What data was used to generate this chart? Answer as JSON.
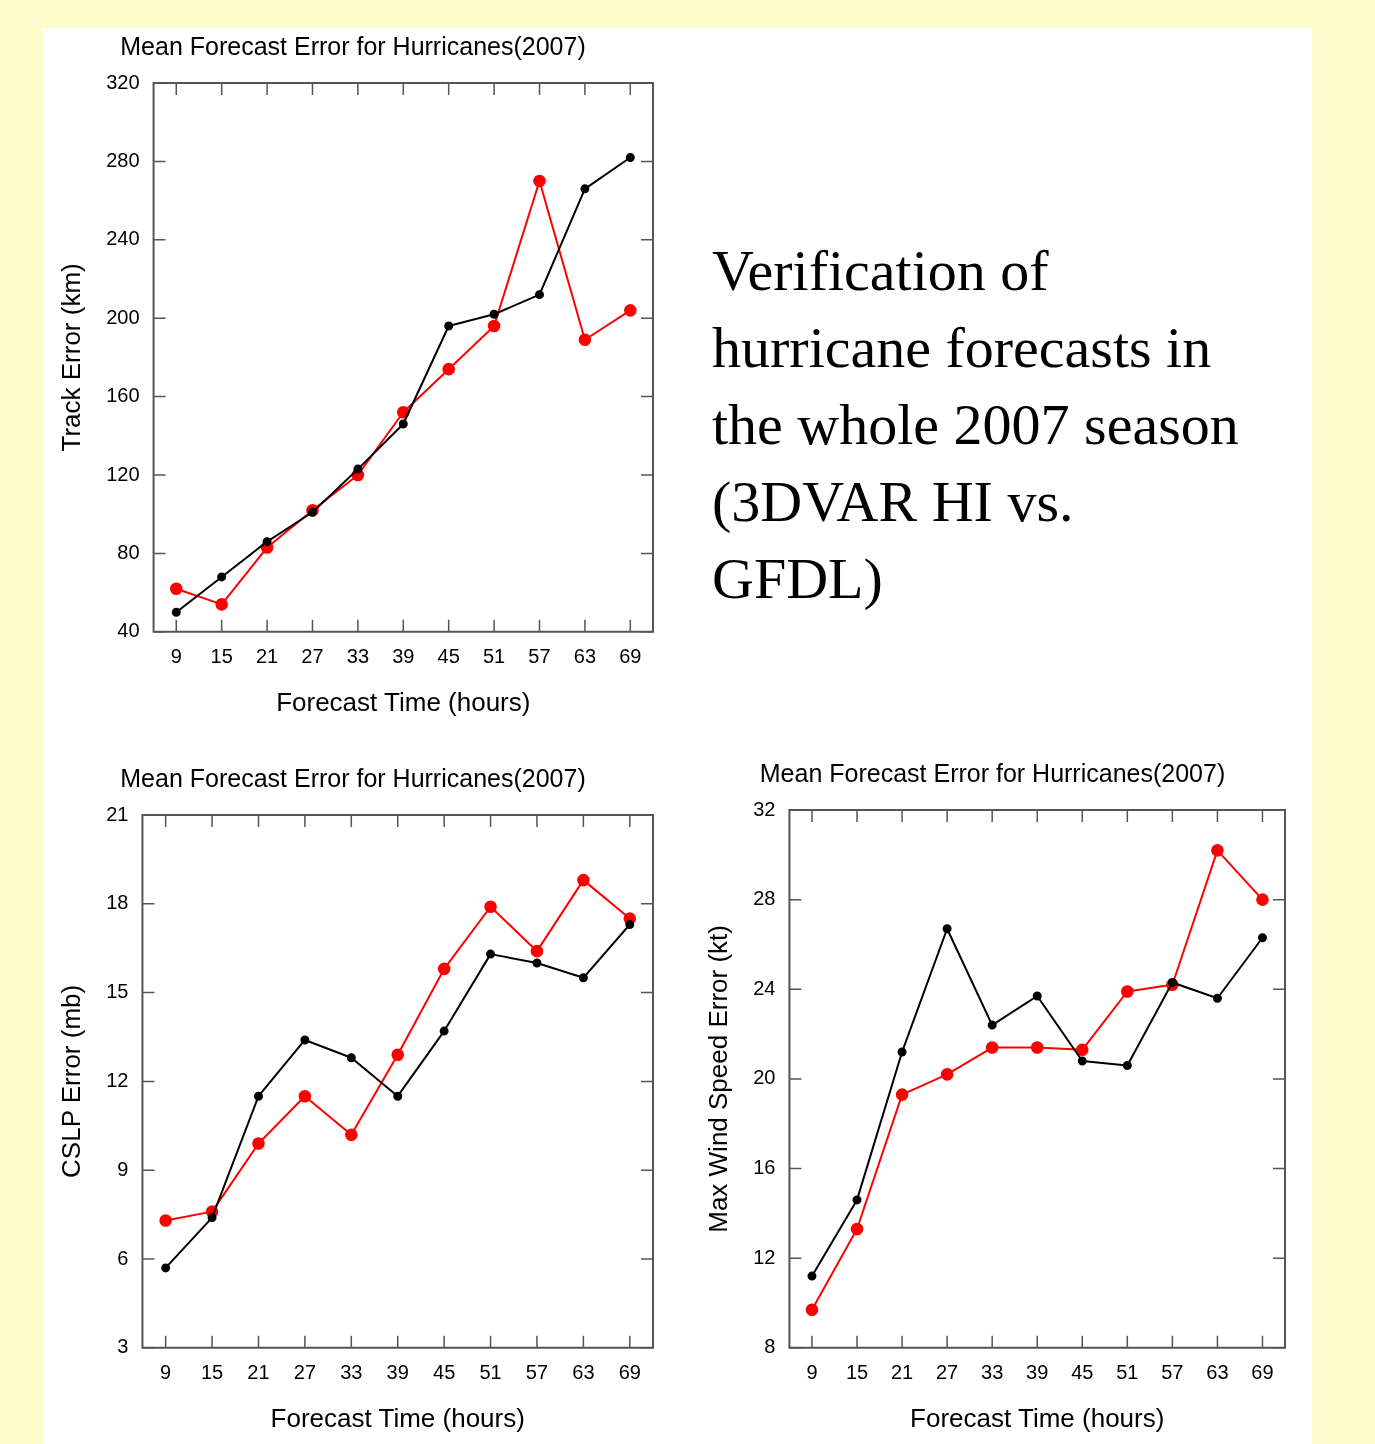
{
  "chart_data": [
    {
      "type": "line",
      "title": "Mean Forecast Error for Hurricanes(2007)",
      "xlabel": "Forecast Time (hours)",
      "ylabel": "Track Error (km)",
      "categories": [
        "9",
        "15",
        "21",
        "27",
        "33",
        "39",
        "45",
        "51",
        "57",
        "63",
        "69"
      ],
      "ylim": [
        40,
        320
      ],
      "yticks": [
        40,
        80,
        120,
        160,
        200,
        240,
        280,
        320
      ],
      "grid": false,
      "legend": false,
      "marker": "circle",
      "line_style": "solid",
      "series": [
        {
          "color": "#000000",
          "values": [
            50,
            68,
            86,
            101,
            123,
            146,
            196,
            202,
            212,
            266,
            282
          ]
        },
        {
          "color": "#ff0000",
          "values": [
            62,
            54,
            83,
            102,
            120,
            152,
            174,
            196,
            270,
            189,
            204
          ]
        }
      ]
    },
    {
      "type": "other",
      "title": "Verification of hurricane forecasts in the whole 2007 season (3DVAR HI vs. GFDL)"
    },
    {
      "type": "line",
      "title": "Mean Forecast Error for Hurricanes(2007)",
      "xlabel": "Forecast Time (hours)",
      "ylabel": "CSLP Error (mb)",
      "categories": [
        "9",
        "15",
        "21",
        "27",
        "33",
        "39",
        "45",
        "51",
        "57",
        "63",
        "69"
      ],
      "ylim": [
        3,
        21
      ],
      "yticks": [
        3,
        6,
        9,
        12,
        15,
        18,
        21
      ],
      "grid": false,
      "legend": false,
      "marker": "circle",
      "line_style": "solid",
      "series": [
        {
          "color": "#000000",
          "values": [
            5.7,
            7.4,
            11.5,
            13.4,
            12.8,
            11.5,
            13.7,
            16.3,
            16.0,
            15.5,
            17.3
          ]
        },
        {
          "color": "#ff0000",
          "values": [
            7.3,
            7.6,
            9.9,
            11.5,
            10.2,
            12.9,
            15.8,
            17.9,
            16.4,
            18.8,
            17.5
          ]
        }
      ]
    },
    {
      "type": "line",
      "title": "Mean Forecast Error for Hurricanes(2007)",
      "xlabel": "Forecast Time (hours)",
      "ylabel": "Max Wind Speed Error (kt)",
      "categories": [
        "9",
        "15",
        "21",
        "27",
        "33",
        "39",
        "45",
        "51",
        "57",
        "63",
        "69"
      ],
      "ylim": [
        8,
        32
      ],
      "yticks": [
        8,
        12,
        16,
        20,
        24,
        28,
        32
      ],
      "grid": false,
      "legend": false,
      "marker": "circle",
      "line_style": "solid",
      "series": [
        {
          "color": "#000000",
          "values": [
            11.2,
            14.6,
            21.2,
            26.7,
            22.4,
            23.7,
            20.8,
            20.6,
            24.3,
            23.6,
            26.3
          ]
        },
        {
          "color": "#ff0000",
          "values": [
            9.7,
            13.3,
            19.3,
            20.2,
            21.4,
            21.4,
            21.3,
            23.9,
            24.2,
            30.2,
            28.0
          ]
        }
      ]
    }
  ]
}
